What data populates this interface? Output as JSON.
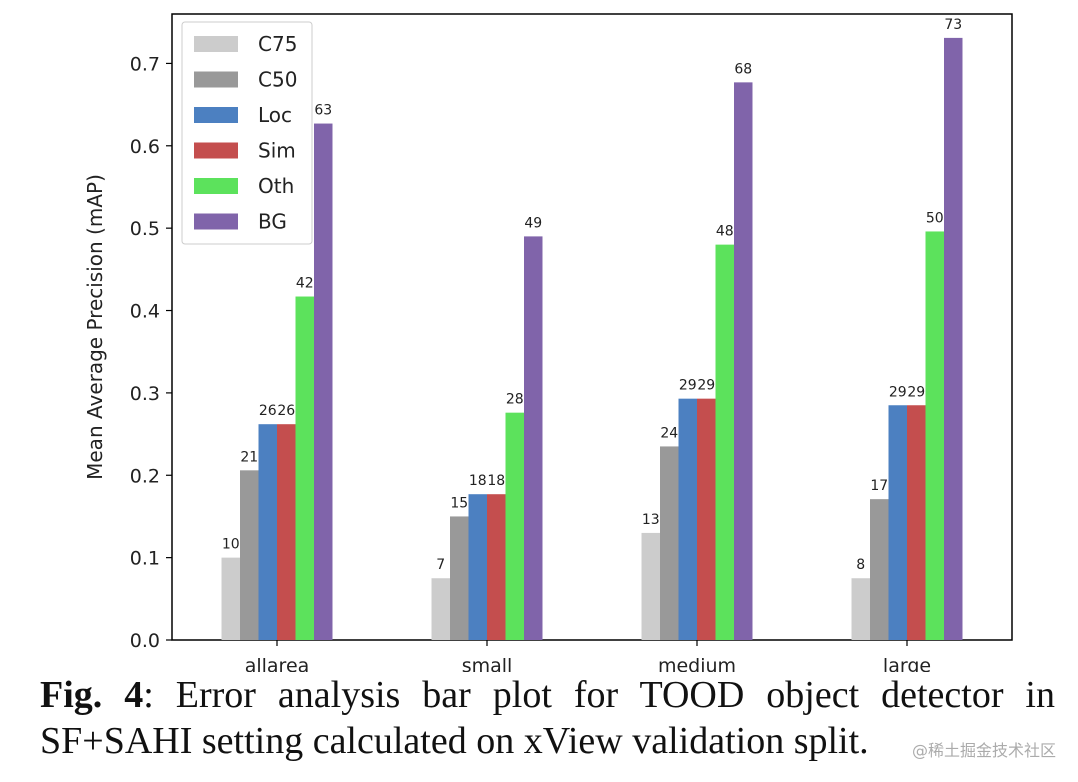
{
  "chart_data": {
    "type": "bar",
    "title": "",
    "xlabel": "",
    "ylabel": "Mean Average Precision (mAP)",
    "ylim": [
      0,
      0.76
    ],
    "yticks": [
      "0.0",
      "0.1",
      "0.2",
      "0.3",
      "0.4",
      "0.5",
      "0.6",
      "0.7"
    ],
    "categories": [
      "allarea",
      "small",
      "medium",
      "large"
    ],
    "legend_position": "top-left",
    "series": [
      {
        "name": "C75",
        "color": "#cccccc",
        "values": [
          0.1,
          0.075,
          0.13,
          0.075
        ],
        "labels": [
          "10",
          "7",
          "13",
          "8"
        ]
      },
      {
        "name": "C50",
        "color": "#999999",
        "values": [
          0.206,
          0.15,
          0.235,
          0.171
        ],
        "labels": [
          "21",
          "15",
          "24",
          "17"
        ]
      },
      {
        "name": "Loc",
        "color": "#4c80c1",
        "values": [
          0.262,
          0.177,
          0.293,
          0.285
        ],
        "labels": [
          "26",
          "18",
          "29",
          "29"
        ]
      },
      {
        "name": "Sim",
        "color": "#c44e4e",
        "values": [
          0.262,
          0.177,
          0.293,
          0.285
        ],
        "labels": [
          "26",
          "18",
          "29",
          "29"
        ]
      },
      {
        "name": "Oth",
        "color": "#5ce25c",
        "values": [
          0.417,
          0.276,
          0.48,
          0.496
        ],
        "labels": [
          "42",
          "28",
          "48",
          "50"
        ]
      },
      {
        "name": "BG",
        "color": "#8064aa",
        "values": [
          0.627,
          0.49,
          0.677,
          0.731
        ],
        "labels": [
          "63",
          "49",
          "68",
          "73"
        ]
      }
    ]
  },
  "caption": {
    "prefix": "Fig. 4",
    "text": ": Error analysis bar plot for TOOD object detector in SF+SAHI setting calculated on xView validation split."
  },
  "watermark": "@稀土掘金技术社区"
}
